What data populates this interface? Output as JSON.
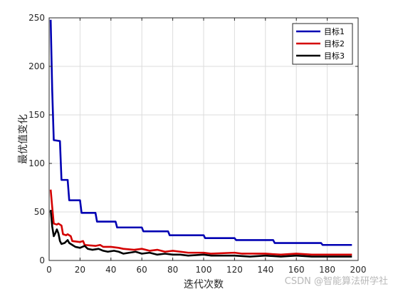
{
  "chart_data": {
    "type": "line",
    "title": "",
    "xlabel": "迭代次数",
    "ylabel": "最优值变化",
    "xlim": [
      0,
      200
    ],
    "ylim": [
      0,
      250
    ],
    "xticks": [
      0,
      20,
      40,
      60,
      80,
      100,
      120,
      140,
      160,
      180,
      200
    ],
    "yticks": [
      0,
      50,
      100,
      150,
      200,
      250
    ],
    "grid": true,
    "legend_position": "top-right",
    "series": [
      {
        "name": "目标1",
        "color": "#0000b3",
        "points": [
          [
            1,
            248
          ],
          [
            2,
            175
          ],
          [
            3,
            124
          ],
          [
            7,
            123
          ],
          [
            8,
            83
          ],
          [
            12,
            83
          ],
          [
            13,
            62
          ],
          [
            20,
            62
          ],
          [
            21,
            49
          ],
          [
            30,
            49
          ],
          [
            31,
            40
          ],
          [
            43,
            40
          ],
          [
            44,
            34
          ],
          [
            60,
            34
          ],
          [
            61,
            30
          ],
          [
            77,
            30
          ],
          [
            78,
            26
          ],
          [
            100,
            26
          ],
          [
            101,
            23
          ],
          [
            120,
            23
          ],
          [
            121,
            21
          ],
          [
            145,
            21
          ],
          [
            146,
            18
          ],
          [
            176,
            18
          ],
          [
            177,
            16
          ],
          [
            196,
            16
          ]
        ]
      },
      {
        "name": "目标2",
        "color": "#d40000",
        "points": [
          [
            1,
            73
          ],
          [
            2,
            55
          ],
          [
            3,
            38
          ],
          [
            5,
            37
          ],
          [
            6,
            38
          ],
          [
            8,
            36
          ],
          [
            9,
            27
          ],
          [
            11,
            26
          ],
          [
            12,
            27
          ],
          [
            14,
            25
          ],
          [
            15,
            20
          ],
          [
            20,
            19
          ],
          [
            22,
            20
          ],
          [
            23,
            16
          ],
          [
            30,
            15
          ],
          [
            33,
            16
          ],
          [
            35,
            14
          ],
          [
            40,
            14
          ],
          [
            45,
            13
          ],
          [
            48,
            12
          ],
          [
            55,
            11
          ],
          [
            60,
            12
          ],
          [
            65,
            10
          ],
          [
            70,
            11
          ],
          [
            75,
            9
          ],
          [
            80,
            10
          ],
          [
            85,
            9
          ],
          [
            90,
            8
          ],
          [
            100,
            8
          ],
          [
            105,
            7
          ],
          [
            120,
            8
          ],
          [
            125,
            7
          ],
          [
            140,
            7
          ],
          [
            150,
            6
          ],
          [
            160,
            7
          ],
          [
            170,
            6
          ],
          [
            196,
            6
          ]
        ]
      },
      {
        "name": "目标3",
        "color": "#000000",
        "points": [
          [
            1,
            52
          ],
          [
            2,
            35
          ],
          [
            3,
            25
          ],
          [
            4,
            28
          ],
          [
            5,
            32
          ],
          [
            6,
            28
          ],
          [
            7,
            20
          ],
          [
            8,
            17
          ],
          [
            10,
            18
          ],
          [
            12,
            21
          ],
          [
            13,
            18
          ],
          [
            15,
            16
          ],
          [
            17,
            14
          ],
          [
            20,
            13
          ],
          [
            23,
            15
          ],
          [
            25,
            12
          ],
          [
            28,
            11
          ],
          [
            32,
            12
          ],
          [
            35,
            10
          ],
          [
            38,
            9
          ],
          [
            42,
            10
          ],
          [
            45,
            9
          ],
          [
            48,
            7
          ],
          [
            52,
            8
          ],
          [
            56,
            9
          ],
          [
            60,
            7
          ],
          [
            65,
            8
          ],
          [
            70,
            6
          ],
          [
            75,
            7
          ],
          [
            80,
            6
          ],
          [
            85,
            6
          ],
          [
            90,
            5
          ],
          [
            100,
            6
          ],
          [
            105,
            5
          ],
          [
            110,
            5
          ],
          [
            120,
            5
          ],
          [
            130,
            4
          ],
          [
            140,
            5
          ],
          [
            150,
            4
          ],
          [
            160,
            5
          ],
          [
            170,
            4
          ],
          [
            180,
            4
          ],
          [
            196,
            4
          ]
        ]
      }
    ]
  },
  "watermark": "CSDN @智能算法研学社"
}
